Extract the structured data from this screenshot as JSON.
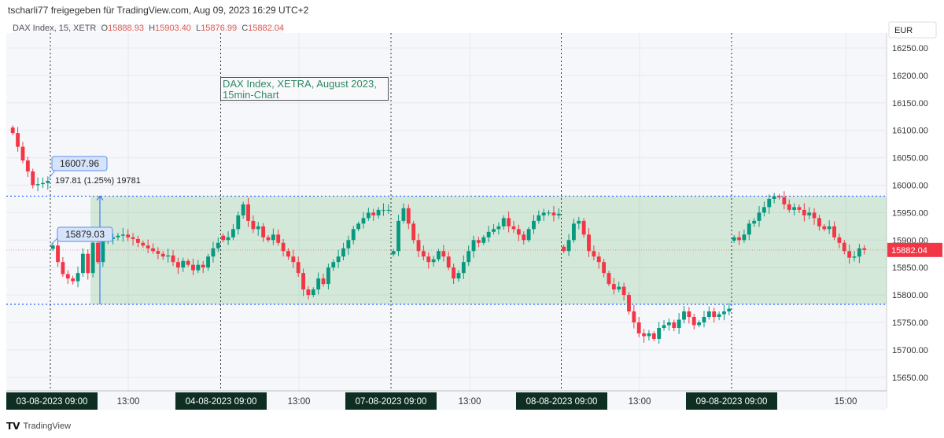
{
  "header": {
    "share_text": "tscharli77 freigegeben für TradingView.com, Aug 09, 2023 16:29 UTC+2"
  },
  "legend": {
    "symbol": "DAX Index, 15, XETR",
    "open_label": "O",
    "open": "15888.93",
    "high_label": "H",
    "high": "15903.40",
    "low_label": "L",
    "low": "15876.99",
    "close_label": "C",
    "close": "15882.04"
  },
  "currency": "EUR",
  "footer": {
    "brand": "TradingView"
  },
  "annotation": {
    "line1": "DAX Index, XETRA, August 2023,",
    "line2": "15min-Chart"
  },
  "callouts": {
    "top_price": "16007.96",
    "top_info": "197.81 (1.25%) 19781",
    "bottom_price": "15879.03"
  },
  "last_price": "15882.04",
  "colors": {
    "up": "#089981",
    "down": "#f23645",
    "zone": "#4caf50",
    "range_line": "#2962ff",
    "date_label_bg": "#0f2e22"
  },
  "chart_data": {
    "type": "candlestick",
    "ylim": [
      15620,
      16280
    ],
    "yticks": [
      16250,
      16200,
      16150,
      16100,
      16050,
      16000,
      15950,
      15900,
      15850,
      15800,
      15750,
      15700,
      15650
    ],
    "ytick_labels": [
      "16250.00",
      "16200.00",
      "16150.00",
      "16100.00",
      "16050.00",
      "16000.00",
      "15950.00",
      "15900.00",
      "15850.00",
      "15800.00",
      "15750.00",
      "15700.00",
      "15650.00"
    ],
    "xtick_labels": [
      {
        "label": "03-08-2023   09:00",
        "session_start": true
      },
      {
        "label": "13:00"
      },
      {
        "label": "04-08-2023   09:00",
        "session_start": true
      },
      {
        "label": "13:00"
      },
      {
        "label": "07-08-2023   09:00",
        "session_start": true
      },
      {
        "label": "13:00"
      },
      {
        "label": "08-08-2023   09:00",
        "session_start": true
      },
      {
        "label": "13:00"
      },
      {
        "label": "09-08-2023   09:00",
        "session_start": true
      },
      {
        "label": "15:00"
      }
    ],
    "interval": "15min",
    "range_zone": {
      "top": 15980,
      "bottom": 15783
    },
    "sessions": [
      {
        "closes": [
          16095,
          16070,
          16045,
          16025,
          16000,
          16002,
          16004,
          16008
        ]
      },
      {
        "closes": [
          15890,
          15860,
          15838,
          15830,
          15825,
          15840,
          15875,
          15840,
          15895,
          15860,
          15898,
          15902,
          15905,
          15908,
          15910,
          15905,
          15902,
          15895,
          15890,
          15885,
          15880,
          15875,
          15870,
          15872,
          15860,
          15850,
          15862,
          15855,
          15845,
          15855,
          15850,
          15870,
          15885,
          15895
        ]
      },
      {
        "closes": [
          15900,
          15905,
          15920,
          15945,
          15965,
          15935,
          15920,
          15925,
          15905,
          15900,
          15910,
          15895,
          15880,
          15870,
          15860,
          15840,
          15810,
          15800,
          15810,
          15830,
          15820,
          15850,
          15860,
          15870,
          15885,
          15900,
          15920,
          15930,
          15940,
          15950,
          15945,
          15955,
          15955,
          15955
        ]
      },
      {
        "closes": [
          15880,
          15935,
          15958,
          15930,
          15900,
          15880,
          15870,
          15860,
          15865,
          15880,
          15870,
          15850,
          15830,
          15840,
          15860,
          15880,
          15900,
          15895,
          15905,
          15915,
          15920,
          15925,
          15940,
          15925,
          15920,
          15910,
          15900,
          15920,
          15935,
          15945,
          15950,
          15950,
          15945,
          15948
        ]
      },
      {
        "closes": [
          15880,
          15900,
          15930,
          15935,
          15910,
          15880,
          15870,
          15860,
          15840,
          15820,
          15810,
          15815,
          15800,
          15770,
          15750,
          15730,
          15725,
          15730,
          15720,
          15740,
          15745,
          15750,
          15740,
          15755,
          15770,
          15760,
          15745,
          15750,
          15760,
          15770,
          15760,
          15765,
          15770,
          15775
        ]
      },
      {
        "closes": [
          15905,
          15900,
          15910,
          15930,
          15935,
          15950,
          15960,
          15975,
          15980,
          15978,
          15965,
          15955,
          15960,
          15955,
          15945,
          15950,
          15940,
          15925,
          15920,
          15925,
          15905,
          15895,
          15880,
          15868,
          15870,
          15885,
          15882
        ]
      }
    ]
  }
}
